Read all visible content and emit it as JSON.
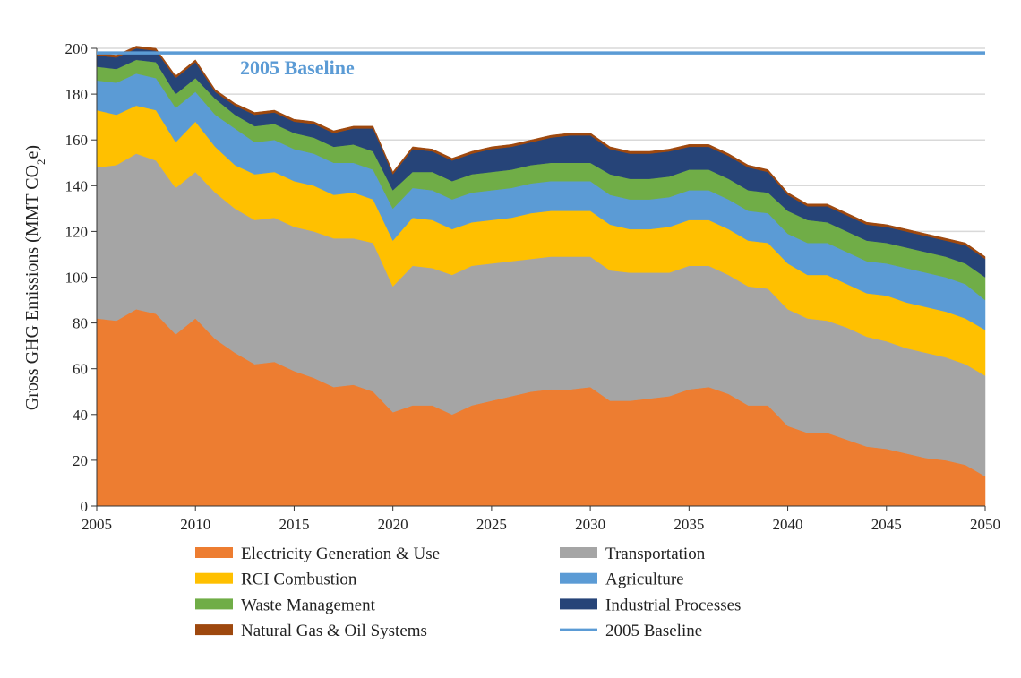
{
  "chart_data": {
    "type": "area",
    "stacked": true,
    "title": "",
    "xlabel": "",
    "ylabel": "Gross GHG Emissions (MMT CO2e)",
    "ylabel_parts": {
      "main": "Gross GHG Emissions (MMT CO",
      "sub": "2",
      "tail": "e)"
    },
    "xlim": [
      2005,
      2050
    ],
    "ylim": [
      0,
      200
    ],
    "x_ticks": [
      "2005",
      "2010",
      "2015",
      "2020",
      "2025",
      "2030",
      "2035",
      "2040",
      "2045",
      "2050"
    ],
    "y_ticks": [
      "0",
      "20",
      "40",
      "60",
      "80",
      "100",
      "120",
      "140",
      "160",
      "180",
      "200"
    ],
    "grid": "horizontal",
    "legend_placement": "bottom",
    "x": [
      2005,
      2006,
      2007,
      2008,
      2009,
      2010,
      2011,
      2012,
      2013,
      2014,
      2015,
      2016,
      2017,
      2018,
      2019,
      2020,
      2021,
      2022,
      2023,
      2024,
      2025,
      2026,
      2027,
      2028,
      2029,
      2030,
      2031,
      2032,
      2033,
      2034,
      2035,
      2036,
      2037,
      2038,
      2039,
      2040,
      2041,
      2042,
      2043,
      2044,
      2045,
      2046,
      2047,
      2048,
      2049,
      2050
    ],
    "series": [
      {
        "name": "Electricity Generation & Use",
        "color": "#ED7D31",
        "values": [
          82,
          81,
          86,
          84,
          75,
          82,
          73,
          67,
          62,
          63,
          59,
          56,
          52,
          53,
          50,
          41,
          44,
          44,
          40,
          44,
          46,
          48,
          50,
          51,
          51,
          52,
          46,
          46,
          47,
          48,
          51,
          52,
          49,
          44,
          44,
          35,
          32,
          32,
          29,
          26,
          25,
          23,
          21,
          20,
          18,
          13
        ]
      },
      {
        "name": "Transportation",
        "color": "#A5A5A5",
        "values": [
          66,
          68,
          68,
          67,
          64,
          64,
          64,
          63,
          63,
          63,
          63,
          64,
          65,
          64,
          65,
          55,
          61,
          60,
          61,
          61,
          60,
          59,
          58,
          58,
          58,
          57,
          57,
          56,
          55,
          54,
          54,
          53,
          52,
          52,
          51,
          51,
          50,
          49,
          49,
          48,
          47,
          46,
          46,
          45,
          44,
          44
        ]
      },
      {
        "name": "RCI Combustion",
        "color": "#FFC000",
        "values": [
          25,
          22,
          21,
          22,
          20,
          22,
          20,
          19,
          20,
          20,
          20,
          20,
          19,
          20,
          19,
          20,
          21,
          21,
          20,
          19,
          19,
          19,
          20,
          20,
          20,
          20,
          20,
          19,
          19,
          20,
          20,
          20,
          20,
          20,
          20,
          20,
          19,
          20,
          19,
          19,
          20,
          20,
          20,
          20,
          20,
          20
        ]
      },
      {
        "name": "Agriculture",
        "color": "#5B9BD5",
        "values": [
          13,
          14,
          14,
          14,
          15,
          13,
          14,
          16,
          14,
          14,
          14,
          14,
          14,
          13,
          13,
          14,
          13,
          13,
          13,
          13,
          13,
          13,
          13,
          13,
          13,
          13,
          13,
          13,
          13,
          13,
          13,
          13,
          13,
          13,
          13,
          13,
          14,
          14,
          14,
          14,
          14,
          15,
          15,
          15,
          15,
          13
        ]
      },
      {
        "name": "Waste Management",
        "color": "#70AD47",
        "values": [
          6,
          6,
          6,
          7,
          6,
          6,
          7,
          6,
          7,
          7,
          7,
          7,
          7,
          8,
          8,
          8,
          7,
          8,
          8,
          8,
          8,
          8,
          8,
          8,
          8,
          8,
          9,
          9,
          9,
          9,
          9,
          9,
          9,
          9,
          9,
          10,
          10,
          9,
          9,
          9,
          9,
          9,
          9,
          9,
          9,
          10
        ]
      },
      {
        "name": "Industrial Processes",
        "color": "#264478",
        "values": [
          5,
          5,
          5,
          5,
          7,
          7,
          3,
          4,
          5,
          5,
          5,
          6,
          6,
          7,
          10,
          7,
          10,
          9,
          9,
          9,
          10,
          10,
          10,
          11,
          12,
          12,
          11,
          11,
          11,
          11,
          10,
          10,
          10,
          10,
          9,
          7,
          6,
          7,
          7,
          7,
          7,
          7,
          7,
          7,
          8,
          8
        ]
      },
      {
        "name": "Natural Gas & Oil Systems",
        "color": "#9E480E",
        "values": [
          1,
          1,
          1,
          1,
          1,
          1,
          1,
          1,
          1,
          1,
          1,
          1,
          1,
          1,
          1,
          1,
          1,
          1,
          1,
          1,
          1,
          1,
          1,
          1,
          1,
          1,
          1,
          1,
          1,
          1,
          1,
          1,
          1,
          1,
          1,
          1,
          1,
          1,
          1,
          1,
          1,
          1,
          1,
          1,
          1,
          1
        ]
      }
    ],
    "baseline": {
      "name": "2005 Baseline",
      "value": 198,
      "color": "#5B9BD5",
      "label": "2005 Baseline"
    },
    "legend_order": [
      "Electricity Generation & Use",
      "Transportation",
      "RCI Combustion",
      "Agriculture",
      "Waste Management",
      "Industrial Processes",
      "Natural Gas & Oil Systems",
      "2005 Baseline"
    ]
  }
}
